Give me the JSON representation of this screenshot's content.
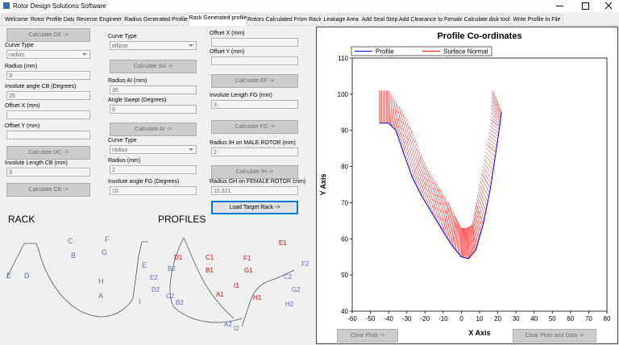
{
  "window": {
    "title": "Rotor Design Solutions Software"
  },
  "tabs": [
    "Welcome",
    "Rotor Profile Data",
    "Reverse Engineer",
    "Radius Generated Profile",
    "Rack Generated profile",
    "Rotors Calculated From Rack",
    "Leakage Area",
    "Add Seal Strip",
    "Add Clearance to Female",
    "Calculate disk tool",
    "Write Profile to File"
  ],
  "columns": [
    [
      {
        "button": "Calculate DE ->"
      },
      {
        "label": "Curve Type",
        "select": "radius"
      },
      {
        "label": "Radius (mm)",
        "value": "3"
      },
      {
        "label": "Involute angle CB (Degrees)",
        "value": "25"
      },
      {
        "label": "Offset X (mm)"
      },
      {
        "label": "Offset Y (mm)"
      },
      {
        "button": "Calculate DC ->"
      },
      {
        "label": "Involute Length CB (mm)",
        "value": "3"
      },
      {
        "button": "Calculate CB ->"
      }
    ],
    [
      {
        "label": "Curve Type",
        "select": "ellipse"
      },
      {
        "button": "Calculate BA ->"
      },
      {
        "label": "Radius AI (mm)",
        "value": "30"
      },
      {
        "label": "Angle Swept  (Degrees)",
        "value": "8"
      },
      {
        "button": "Calculate AI ->"
      },
      {
        "label": "Curve Type",
        "select": "radius"
      },
      {
        "label": "Radius (mm)",
        "value": "2"
      },
      {
        "label": "Involute angle FG (Degrees)",
        "value": "10"
      }
    ],
    [
      {
        "label": "Offset X (mm)"
      },
      {
        "label": "Offset Y (mm)"
      },
      {
        "button": "Calculate EF ->"
      },
      {
        "label": "Involute Length FG (mm)",
        "value": "3"
      },
      {
        "button": "Calculate FG ->"
      },
      {
        "label": "Radius IH on MALE ROTOR (mm)",
        "value": "2"
      },
      {
        "button": "Calculate IH ->"
      },
      {
        "label": "Radius GH on FEMALE ROTOR (mm)",
        "value": "15.321"
      },
      {
        "button": "Load Target Rack ->"
      }
    ]
  ],
  "rack": {
    "title": "RACK",
    "labels": [
      "E",
      "D",
      "C",
      "B",
      "F",
      "G",
      "E",
      "H",
      "A",
      "I"
    ]
  },
  "profiles": {
    "title": "PROFILES",
    "labels": [
      "E2",
      "D2",
      "B2",
      "C2",
      "B2",
      "E1",
      "D1",
      "C1",
      "B1",
      "F1",
      "G1",
      "I1",
      "A1",
      "H1",
      "A2",
      "I2",
      "F2",
      "C2",
      "G2",
      "H2"
    ]
  },
  "buttons": {
    "clear": "Clear Plots ->",
    "clear_all": "Clear Plots and Data ->"
  },
  "chart_data": {
    "type": "line",
    "title": "Profile Co-ordinates",
    "x_label": "X Axis",
    "y_label": "Y Axis",
    "xlim": [
      -60,
      80
    ],
    "xticks": [
      -60,
      -50,
      -40,
      -30,
      -20,
      -10,
      0,
      10,
      20,
      30,
      40,
      50,
      60,
      70,
      80
    ],
    "ylim": [
      40,
      110
    ],
    "yticks": [
      40,
      50,
      60,
      70,
      80,
      90,
      100,
      110
    ],
    "legend": "top-left",
    "series": [
      {
        "name": "Profile",
        "color": "#0000ff",
        "x": [
          -45,
          -40,
          -36,
          -32,
          -27,
          -22,
          -16,
          -10,
          -5,
          0,
          4,
          8,
          12,
          16,
          19,
          21,
          22
        ],
        "values": [
          92,
          92,
          90,
          84,
          77,
          72,
          67,
          62,
          58,
          55,
          54.5,
          57,
          64,
          74,
          84,
          91,
          95
        ]
      },
      {
        "name": "Surface Normal",
        "color": "#ff0000",
        "x": [
          -45,
          -40,
          -33,
          -27,
          -22,
          -17,
          -12,
          -7,
          -3,
          0,
          3,
          6,
          8,
          11,
          14,
          16,
          17
        ],
        "values": [
          101,
          101,
          96,
          90,
          83,
          78,
          74,
          70,
          66,
          63,
          63,
          64,
          70,
          78,
          86,
          93,
          101
        ]
      }
    ]
  }
}
